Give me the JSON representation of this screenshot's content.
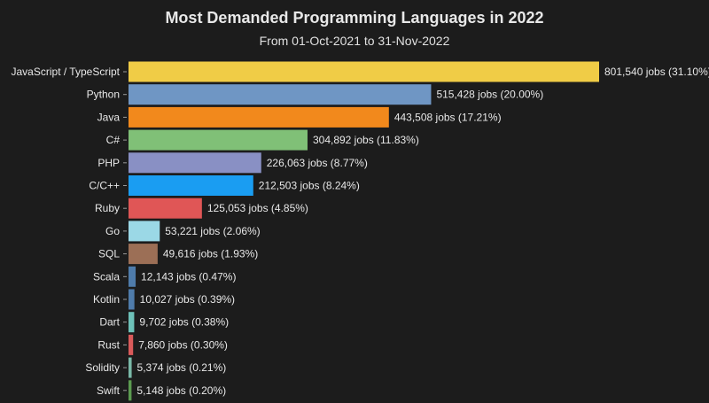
{
  "chart_data": {
    "type": "bar",
    "orientation": "horizontal",
    "title": "Most Demanded Programming Languages in 2022",
    "subtitle": "From 01-Oct-2021 to 31-Nov-2022",
    "grid": false,
    "xlim": [
      0,
      801540
    ],
    "categories": [
      "JavaScript / TypeScript",
      "Python",
      "Java",
      "C#",
      "PHP",
      "C/C++",
      "Ruby",
      "Go",
      "SQL",
      "Scala",
      "Kotlin",
      "Dart",
      "Rust",
      "Solidity",
      "Swift"
    ],
    "values": [
      801540,
      515428,
      443508,
      304892,
      226063,
      212503,
      125053,
      53221,
      49616,
      12143,
      10027,
      9702,
      7860,
      5374,
      5148
    ],
    "data_labels": [
      "801,540 jobs (31.10%)",
      "515,428 jobs (20.00%)",
      "443,508 jobs (17.21%)",
      "304,892 jobs (11.83%)",
      "226,063 jobs (8.77%)",
      "212,503 jobs (8.24%)",
      "125,053 jobs (4.85%)",
      "53,221 jobs (2.06%)",
      "49,616 jobs (1.93%)",
      "12,143 jobs (0.47%)",
      "10,027 jobs (0.39%)",
      "9,702 jobs (0.38%)",
      "7,860 jobs (0.30%)",
      "5,374 jobs (0.21%)",
      "5,148 jobs (0.20%)"
    ],
    "colors": [
      "#f0cc46",
      "#6f96c4",
      "#f2891c",
      "#80c077",
      "#8990c4",
      "#1a9df2",
      "#e05656",
      "#9bd8e6",
      "#9c6f56",
      "#4f7cab",
      "#4f7cab",
      "#6dc1b8",
      "#d95a5a",
      "#7ab9a8",
      "#5b9b50"
    ]
  }
}
